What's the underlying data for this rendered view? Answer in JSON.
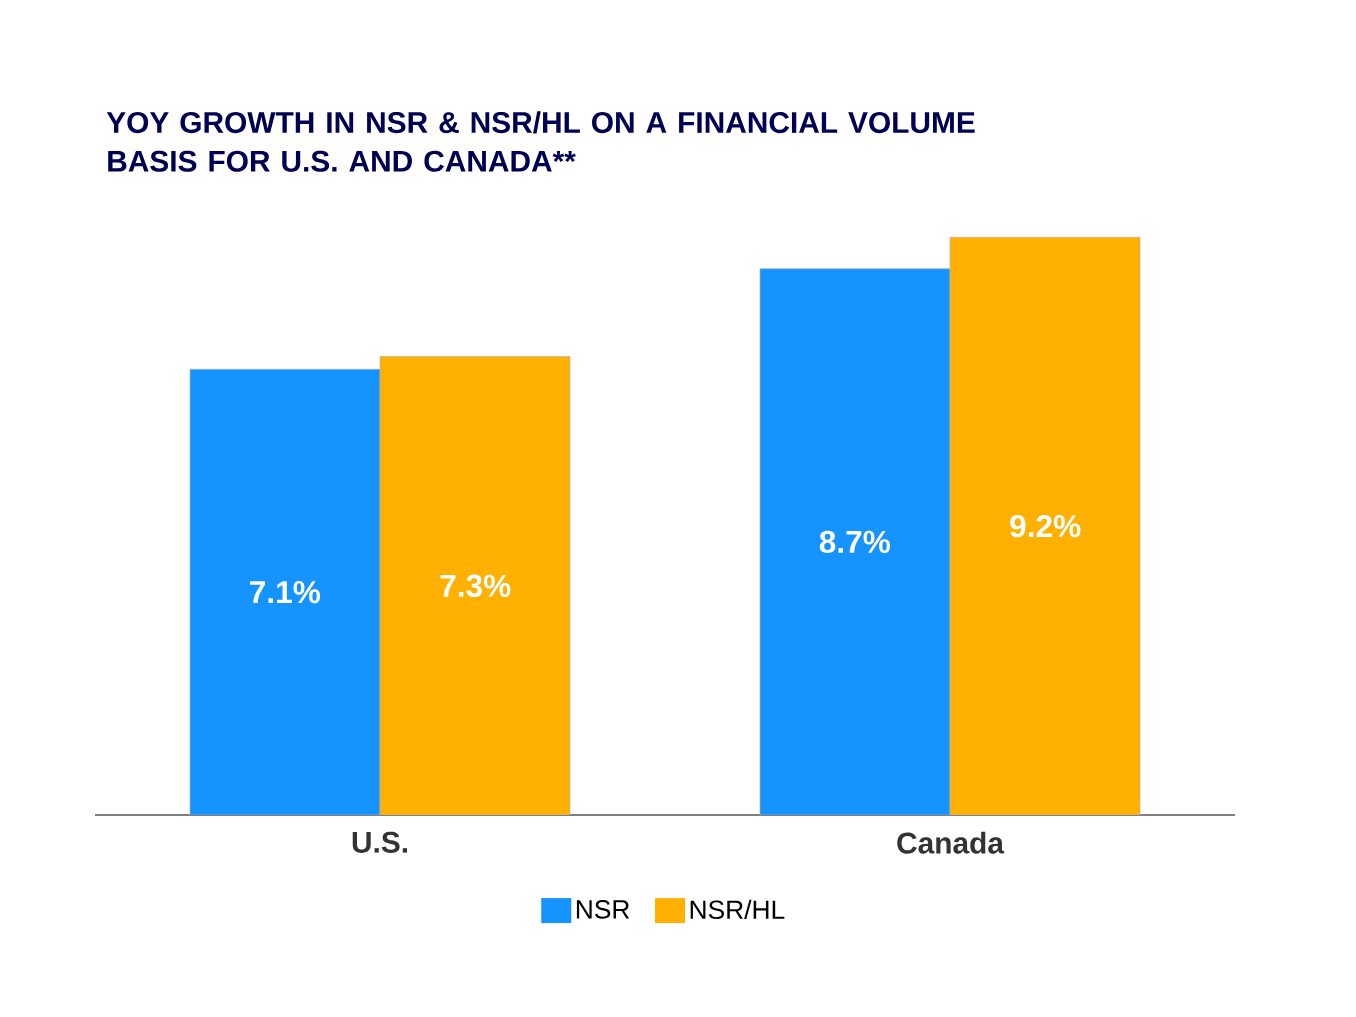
{
  "chart_data": {
    "type": "bar",
    "title": "YOY GROWTH IN NSR & NSR/HL ON A FINANCIAL VOLUME BASIS FOR U.S. AND CANADA**",
    "categories": [
      "U.S.",
      "Canada"
    ],
    "series": [
      {
        "name": "NSR",
        "color": "#1593fe",
        "values": [
          7.1,
          8.7
        ],
        "value_labels": [
          "7.1%",
          "8.7%"
        ]
      },
      {
        "name": "NSR/HL",
        "color": "#ffb000",
        "values": [
          7.3,
          9.2
        ],
        "value_labels": [
          "7.3%",
          "9.2%"
        ]
      }
    ],
    "legend": "bottom"
  }
}
